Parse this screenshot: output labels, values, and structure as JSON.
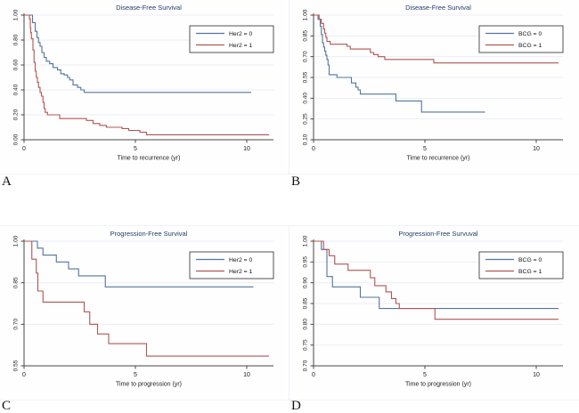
{
  "style": {
    "background": "#ffffff",
    "title_color": "#243a67",
    "axis_color": "#474747",
    "tick_text_color": "#1c1c1c",
    "grid_color": "#e9eff5",
    "legend_border_color": "#3f3f3f",
    "legend_fill": "#ffffff",
    "blue": "#53759b",
    "red": "#b05552"
  },
  "chart_data": [
    {
      "id": "A",
      "type": "line",
      "subtype": "kaplan_meier_step",
      "title": "Disease-Free Survival",
      "xlabel": "Time to recurrence (yr)",
      "corner_label": "A",
      "xlim": [
        0,
        11.2
      ],
      "xticks": [
        0,
        5,
        10
      ],
      "xtick_labels": [
        "0",
        "5",
        "10"
      ],
      "ylim": [
        0.0,
        1.0
      ],
      "ytick_labels": [
        "0.00",
        "0.20",
        "0.40",
        "0.60",
        "0.80",
        "1.00"
      ],
      "grid": true,
      "legend_position": "top-right",
      "series": [
        {
          "name": "Her2 = 0",
          "color": "#53759b",
          "points": [
            [
              0,
              1.0
            ],
            [
              0.38,
              0.94
            ],
            [
              0.5,
              0.87
            ],
            [
              0.58,
              0.82
            ],
            [
              0.65,
              0.78
            ],
            [
              0.72,
              0.75
            ],
            [
              0.8,
              0.7
            ],
            [
              0.9,
              0.66
            ],
            [
              1.0,
              0.63
            ],
            [
              1.15,
              0.61
            ],
            [
              1.3,
              0.58
            ],
            [
              1.5,
              0.56
            ],
            [
              1.65,
              0.53
            ],
            [
              1.8,
              0.52
            ],
            [
              1.95,
              0.5
            ],
            [
              2.05,
              0.48
            ],
            [
              2.2,
              0.44
            ],
            [
              2.4,
              0.42
            ],
            [
              2.55,
              0.4
            ],
            [
              2.7,
              0.38
            ],
            [
              10.2,
              0.38
            ]
          ]
        },
        {
          "name": "Her2 = 1",
          "color": "#b05552",
          "points": [
            [
              0,
              1.0
            ],
            [
              0.24,
              0.97
            ],
            [
              0.28,
              0.9
            ],
            [
              0.3,
              0.86
            ],
            [
              0.33,
              0.81
            ],
            [
              0.4,
              0.72
            ],
            [
              0.45,
              0.62
            ],
            [
              0.5,
              0.55
            ],
            [
              0.55,
              0.5
            ],
            [
              0.6,
              0.46
            ],
            [
              0.65,
              0.42
            ],
            [
              0.72,
              0.38
            ],
            [
              0.78,
              0.35
            ],
            [
              0.85,
              0.3
            ],
            [
              0.9,
              0.25
            ],
            [
              0.95,
              0.22
            ],
            [
              1.05,
              0.2
            ],
            [
              1.6,
              0.17
            ],
            [
              2.8,
              0.155
            ],
            [
              3.1,
              0.13
            ],
            [
              3.4,
              0.115
            ],
            [
              3.7,
              0.1
            ],
            [
              4.4,
              0.09
            ],
            [
              4.7,
              0.075
            ],
            [
              5.2,
              0.06
            ],
            [
              5.5,
              0.04
            ],
            [
              11,
              0.04
            ]
          ]
        }
      ]
    },
    {
      "id": "B",
      "type": "line",
      "subtype": "kaplan_meier_step",
      "title": "Disease-Free Survival",
      "xlabel": "Time to recurrence (yr)",
      "corner_label": "B",
      "xlim": [
        0,
        11.2
      ],
      "xticks": [
        0,
        5,
        10
      ],
      "xtick_labels": [
        "0",
        "5",
        "10"
      ],
      "ylim": [
        0.1,
        1.0
      ],
      "ytick_labels": [
        "0.10",
        "0.25",
        "0.40",
        "0.55",
        "0.70",
        "0.85",
        "1.00"
      ],
      "grid": true,
      "legend_position": "top-right",
      "series": [
        {
          "name": "BCG = 0",
          "color": "#53759b",
          "points": [
            [
              0,
              1.0
            ],
            [
              0.2,
              0.97
            ],
            [
              0.3,
              0.92
            ],
            [
              0.35,
              0.86
            ],
            [
              0.4,
              0.8
            ],
            [
              0.45,
              0.77
            ],
            [
              0.5,
              0.74
            ],
            [
              0.55,
              0.71
            ],
            [
              0.6,
              0.68
            ],
            [
              0.65,
              0.64
            ],
            [
              0.7,
              0.57
            ],
            [
              1.05,
              0.55
            ],
            [
              1.7,
              0.51
            ],
            [
              1.9,
              0.48
            ],
            [
              2.0,
              0.46
            ],
            [
              2.1,
              0.43
            ],
            [
              3.7,
              0.38
            ],
            [
              4.85,
              0.3
            ],
            [
              7.7,
              0.3
            ]
          ]
        },
        {
          "name": "BCG = 1",
          "color": "#b05552",
          "points": [
            [
              0,
              1.0
            ],
            [
              0.25,
              0.97
            ],
            [
              0.35,
              0.94
            ],
            [
              0.45,
              0.9
            ],
            [
              0.5,
              0.87
            ],
            [
              0.55,
              0.84
            ],
            [
              0.6,
              0.81
            ],
            [
              0.75,
              0.79
            ],
            [
              1.5,
              0.775
            ],
            [
              1.65,
              0.755
            ],
            [
              2.55,
              0.73
            ],
            [
              2.7,
              0.715
            ],
            [
              2.9,
              0.7
            ],
            [
              3.2,
              0.68
            ],
            [
              5.4,
              0.655
            ],
            [
              11,
              0.655
            ]
          ]
        }
      ]
    },
    {
      "id": "C",
      "type": "line",
      "subtype": "kaplan_meier_step",
      "title": "Progression-Free Survival",
      "xlabel": "Time to progression (yr)",
      "corner_label": "C",
      "xlim": [
        0,
        11.2
      ],
      "xticks": [
        0,
        5,
        10
      ],
      "xtick_labels": [
        "0",
        "5",
        "10"
      ],
      "ylim": [
        0.55,
        1.0
      ],
      "ytick_labels": [
        "0.55",
        "0.70",
        "0.85",
        "1.00"
      ],
      "grid": true,
      "legend_position": "top-right",
      "series": [
        {
          "name": "Her2 = 0",
          "color": "#53759b",
          "points": [
            [
              0,
              1.0
            ],
            [
              0.6,
              0.975
            ],
            [
              0.85,
              0.95
            ],
            [
              1.45,
              0.925
            ],
            [
              2.0,
              0.9
            ],
            [
              2.45,
              0.875
            ],
            [
              3.65,
              0.835
            ],
            [
              10.3,
              0.835
            ]
          ]
        },
        {
          "name": "Her2 = 1",
          "color": "#b05552",
          "points": [
            [
              0,
              1.0
            ],
            [
              0.35,
              0.935
            ],
            [
              0.55,
              0.885
            ],
            [
              0.62,
              0.82
            ],
            [
              0.85,
              0.78
            ],
            [
              2.7,
              0.745
            ],
            [
              2.95,
              0.7
            ],
            [
              3.3,
              0.665
            ],
            [
              3.8,
              0.63
            ],
            [
              5.5,
              0.585
            ],
            [
              11,
              0.585
            ]
          ]
        }
      ]
    },
    {
      "id": "D",
      "type": "line",
      "subtype": "kaplan_meier_step",
      "title": "Progression-Free Survuval",
      "xlabel": "Time to progression (yr)",
      "corner_label": "D",
      "xlim": [
        0,
        11.2
      ],
      "xticks": [
        0,
        5,
        10
      ],
      "xtick_labels": [
        "0",
        "5",
        "10"
      ],
      "ylim": [
        0.7,
        1.0
      ],
      "ytick_labels": [
        "0.70",
        "0.75",
        "0.80",
        "0.85",
        "0.90",
        "0.95",
        "1.00"
      ],
      "grid": true,
      "legend_position": "top-right",
      "series": [
        {
          "name": "BCG = 0",
          "color": "#53759b",
          "points": [
            [
              0,
              1.0
            ],
            [
              0.35,
              0.98
            ],
            [
              0.6,
              0.915
            ],
            [
              0.85,
              0.89
            ],
            [
              2.1,
              0.865
            ],
            [
              2.95,
              0.838
            ],
            [
              11,
              0.838
            ]
          ]
        },
        {
          "name": "BCG = 1",
          "color": "#b05552",
          "points": [
            [
              0,
              1.0
            ],
            [
              0.45,
              0.98
            ],
            [
              0.7,
              0.965
            ],
            [
              0.95,
              0.945
            ],
            [
              1.55,
              0.93
            ],
            [
              2.55,
              0.912
            ],
            [
              2.75,
              0.893
            ],
            [
              3.25,
              0.878
            ],
            [
              3.5,
              0.862
            ],
            [
              3.7,
              0.85
            ],
            [
              3.85,
              0.838
            ],
            [
              5.45,
              0.812
            ],
            [
              11,
              0.812
            ]
          ]
        }
      ]
    }
  ]
}
